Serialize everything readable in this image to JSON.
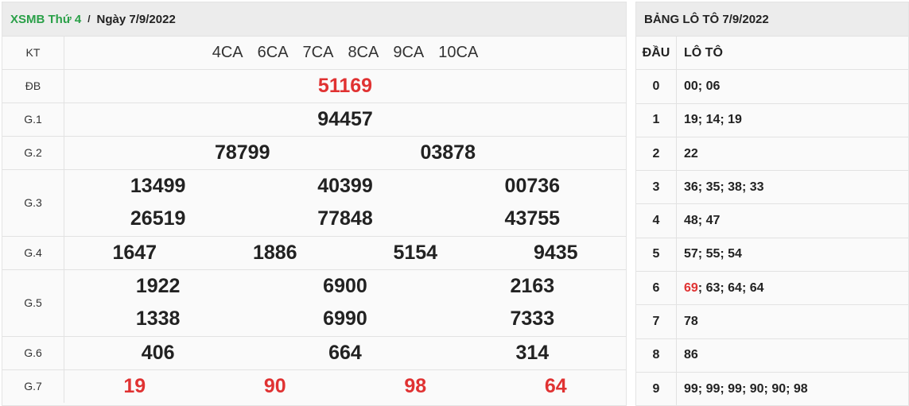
{
  "left": {
    "brand": "XSMB Thứ 4",
    "separator": "/",
    "date": "Ngày 7/9/2022",
    "kt_label": "KT",
    "kt_codes": [
      "4CA",
      "6CA",
      "7CA",
      "8CA",
      "9CA",
      "10CA"
    ],
    "prizes": [
      {
        "label": "ĐB",
        "lines": [
          [
            "51169"
          ]
        ],
        "red": true
      },
      {
        "label": "G.1",
        "lines": [
          [
            "94457"
          ]
        ]
      },
      {
        "label": "G.2",
        "lines": [
          [
            "78799",
            "03878"
          ]
        ]
      },
      {
        "label": "G.3",
        "lines": [
          [
            "13499",
            "40399",
            "00736"
          ],
          [
            "26519",
            "77848",
            "43755"
          ]
        ]
      },
      {
        "label": "G.4",
        "lines": [
          [
            "1647",
            "1886",
            "5154",
            "9435"
          ]
        ]
      },
      {
        "label": "G.5",
        "lines": [
          [
            "1922",
            "6900",
            "2163"
          ],
          [
            "1338",
            "6990",
            "7333"
          ]
        ]
      },
      {
        "label": "G.6",
        "lines": [
          [
            "406",
            "664",
            "314"
          ]
        ]
      },
      {
        "label": "G.7",
        "lines": [
          [
            "19",
            "90",
            "98",
            "64"
          ]
        ],
        "red": true
      }
    ]
  },
  "right": {
    "title": "BẢNG LÔ TÔ 7/9/2022",
    "col_dau": "ĐẦU",
    "col_loto": "LÔ TÔ",
    "rows": [
      {
        "dau": "0",
        "parts": [
          "00",
          "06"
        ]
      },
      {
        "dau": "1",
        "parts": [
          "19",
          "14",
          "19"
        ]
      },
      {
        "dau": "2",
        "parts": [
          "22"
        ]
      },
      {
        "dau": "3",
        "parts": [
          "36",
          "35",
          "38",
          "33"
        ]
      },
      {
        "dau": "4",
        "parts": [
          "48",
          "47"
        ]
      },
      {
        "dau": "5",
        "parts": [
          "57",
          "55",
          "54"
        ]
      },
      {
        "dau": "6",
        "parts": [
          "69",
          "63",
          "64",
          "64"
        ],
        "highlight": "69"
      },
      {
        "dau": "7",
        "parts": [
          "78"
        ]
      },
      {
        "dau": "8",
        "parts": [
          "86"
        ]
      },
      {
        "dau": "9",
        "parts": [
          "99",
          "99",
          "99",
          "90",
          "90",
          "98"
        ]
      }
    ]
  },
  "colors": {
    "brand": "#2aa048",
    "highlight": "#e03232"
  }
}
